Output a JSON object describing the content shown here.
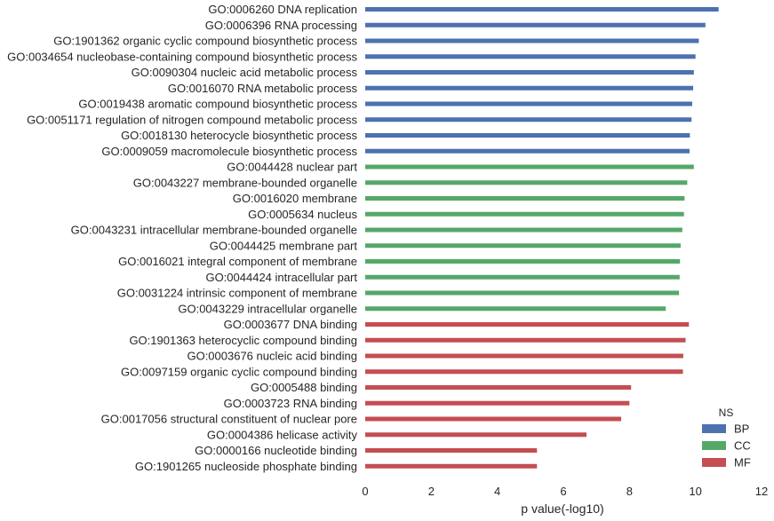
{
  "chart_data": {
    "type": "bar",
    "orientation": "horizontal",
    "xlabel": "p value(-log10)",
    "ylabel": "",
    "xlim": [
      0,
      12
    ],
    "xticks": [
      0,
      2,
      4,
      6,
      8,
      10,
      12
    ],
    "grid": false,
    "legend": {
      "title": "NS",
      "position": "bottom-right",
      "items": [
        {
          "name": "BP",
          "color": "#4c72b0"
        },
        {
          "name": "CC",
          "color": "#55a868"
        },
        {
          "name": "MF",
          "color": "#c44e52"
        }
      ]
    },
    "bars": [
      {
        "label": "GO:0006260 DNA replication",
        "value": 10.7,
        "ns": "BP"
      },
      {
        "label": "GO:0006396 RNA processing",
        "value": 10.3,
        "ns": "BP"
      },
      {
        "label": "GO:1901362 organic cyclic compound biosynthetic process",
        "value": 10.1,
        "ns": "BP"
      },
      {
        "label": "GO:0034654 nucleobase-containing compound biosynthetic process",
        "value": 10.0,
        "ns": "BP"
      },
      {
        "label": "GO:0090304 nucleic acid metabolic process",
        "value": 9.95,
        "ns": "BP"
      },
      {
        "label": "GO:0016070 RNA metabolic process",
        "value": 9.93,
        "ns": "BP"
      },
      {
        "label": "GO:0019438 aromatic compound biosynthetic process",
        "value": 9.9,
        "ns": "BP"
      },
      {
        "label": "GO:0051171 regulation of nitrogen compound metabolic process",
        "value": 9.88,
        "ns": "BP"
      },
      {
        "label": "GO:0018130 heterocycle biosynthetic process",
        "value": 9.83,
        "ns": "BP"
      },
      {
        "label": "GO:0009059 macromolecule biosynthetic process",
        "value": 9.82,
        "ns": "BP"
      },
      {
        "label": "GO:0044428 nuclear part",
        "value": 9.95,
        "ns": "CC"
      },
      {
        "label": "GO:0043227 membrane-bounded organelle",
        "value": 9.75,
        "ns": "CC"
      },
      {
        "label": "GO:0016020 membrane",
        "value": 9.67,
        "ns": "CC"
      },
      {
        "label": "GO:0005634 nucleus",
        "value": 9.65,
        "ns": "CC"
      },
      {
        "label": "GO:0043231 intracellular membrane-bounded organelle",
        "value": 9.6,
        "ns": "CC"
      },
      {
        "label": "GO:0044425 membrane part",
        "value": 9.55,
        "ns": "CC"
      },
      {
        "label": "GO:0016021 integral component of membrane",
        "value": 9.53,
        "ns": "CC"
      },
      {
        "label": "GO:0044424 intracellular part",
        "value": 9.52,
        "ns": "CC"
      },
      {
        "label": "GO:0031224 intrinsic component of membrane",
        "value": 9.5,
        "ns": "CC"
      },
      {
        "label": "GO:0043229 intracellular organelle",
        "value": 9.1,
        "ns": "CC"
      },
      {
        "label": "GO:0003677 DNA binding",
        "value": 9.8,
        "ns": "MF"
      },
      {
        "label": "GO:1901363 heterocyclic compound binding",
        "value": 9.7,
        "ns": "MF"
      },
      {
        "label": "GO:0003676 nucleic acid binding",
        "value": 9.63,
        "ns": "MF"
      },
      {
        "label": "GO:0097159 organic cyclic compound binding",
        "value": 9.62,
        "ns": "MF"
      },
      {
        "label": "GO:0005488 binding",
        "value": 8.05,
        "ns": "MF"
      },
      {
        "label": "GO:0003723 RNA binding",
        "value": 8.0,
        "ns": "MF"
      },
      {
        "label": "GO:0017056 structural constituent of nuclear pore",
        "value": 7.75,
        "ns": "MF"
      },
      {
        "label": "GO:0004386 helicase activity",
        "value": 6.7,
        "ns": "MF"
      },
      {
        "label": "GO:0000166 nucleotide binding",
        "value": 5.2,
        "ns": "MF"
      },
      {
        "label": "GO:1901265 nucleoside phosphate binding",
        "value": 5.2,
        "ns": "MF"
      }
    ]
  }
}
